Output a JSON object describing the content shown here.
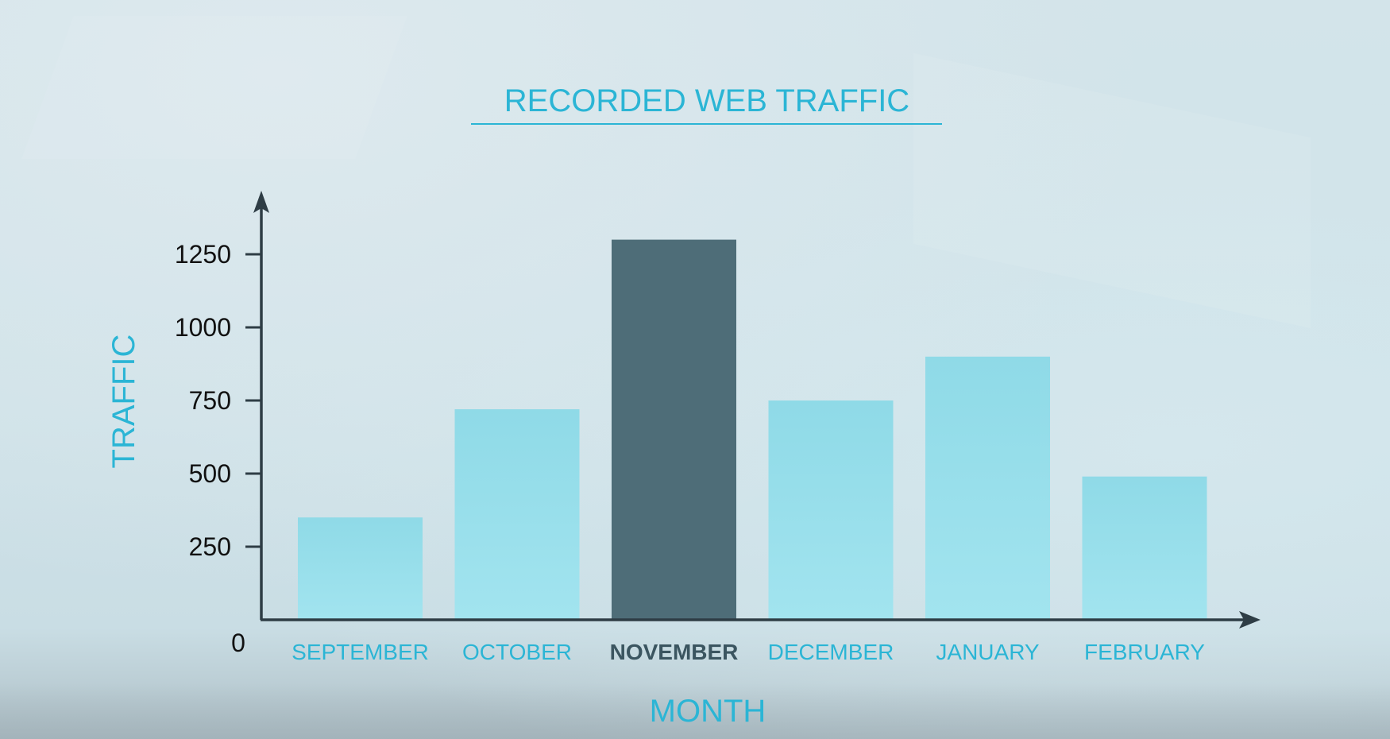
{
  "chart_data": {
    "type": "bar",
    "title": "RECORDED WEB TRAFFIC",
    "xlabel": "MONTH",
    "ylabel": "TRAFFIC",
    "categories": [
      "SEPTEMBER",
      "OCTOBER",
      "NOVEMBER",
      "DECEMBER",
      "JANUARY",
      "FEBRUARY"
    ],
    "values": [
      350,
      720,
      1300,
      750,
      900,
      490
    ],
    "highlight_category": "NOVEMBER",
    "yticks": [
      0,
      250,
      500,
      750,
      1000,
      1250
    ],
    "ylim": [
      0,
      1450
    ],
    "grid": false,
    "legend": "none",
    "colors": {
      "bar": "#96dde9",
      "highlight_bar": "#4e6d78",
      "axis": "#2e3d45",
      "accent_text": "#2bb5d5",
      "highlight_text": "#3b5560",
      "tick_text": "#111111"
    }
  }
}
